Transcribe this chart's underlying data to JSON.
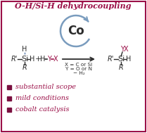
{
  "title": "O-H/Si-H dehydrocoupling",
  "title_color": "#9b1048",
  "border_color": "#9b1048",
  "background_color": "#ffffff",
  "co_circle_color": "#7a9cbe",
  "dark_color": "#2b2b2b",
  "crimson": "#9b1048",
  "bullet_color": "#7a1040",
  "bullet_items": [
    "substantial scope",
    "mild conditions",
    "cobalt catalysis"
  ],
  "figsize": [
    2.09,
    1.89
  ],
  "dpi": 100
}
